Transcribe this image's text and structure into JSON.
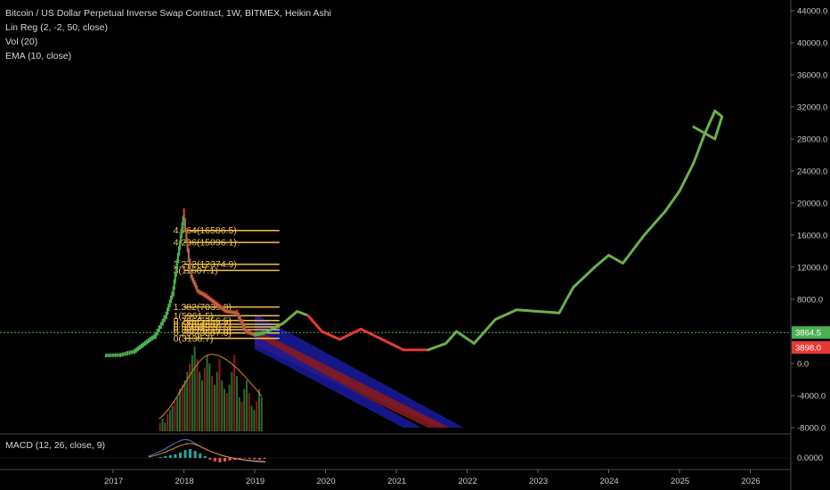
{
  "legend": {
    "symbol": "Bitcoin / US Dollar Perpetual Inverse Swap Contract, 1W, BITMEX, Heikin Ashi",
    "linreg": "Lin Reg (2, -2, 50, close)",
    "vol": "Vol (20)",
    "ema": "EMA (10, close)"
  },
  "macd_legend": "MACD (12, 26, close, 9)",
  "colors": {
    "background": "#000000",
    "up_candle": "#4caf50",
    "down_candle": "#e53935",
    "fib": "#f5c24b",
    "projection_up": "#6ab04c",
    "projection_down": "#e53935",
    "channel_blue": "#1a1a9e",
    "channel_red": "#8b1a1a",
    "price_line": "#4caf50"
  },
  "chart_data": {
    "type": "line",
    "title": "Bitcoin / US Dollar Perpetual Inverse Swap Contract, 1W, BITMEX, Heikin Ashi",
    "x_ticks": [
      "2017",
      "2018",
      "2019",
      "2020",
      "2021",
      "2022",
      "2023",
      "2024",
      "2025",
      "2026"
    ],
    "y_ticks": [
      "44000.0",
      "40000.0",
      "36000.0",
      "32000.0",
      "28000.0",
      "24000.0",
      "20000.0",
      "16000.0",
      "12000.0",
      "8000.0",
      "0.0",
      "-4000.0",
      "-8000.0"
    ],
    "ylim": [
      -8000,
      44000
    ],
    "price_badges": [
      {
        "label": "3864.5",
        "value": 3864.5,
        "color": "#4caf50"
      },
      {
        "label": "3898.0",
        "value": 2000,
        "color": "#e53935"
      }
    ],
    "fib_levels": [
      {
        "label": "4.764(16586.5)",
        "value": 16586.5
      },
      {
        "label": "4.236(15096.1)",
        "value": 15096.1
      },
      {
        "label": "3.272(12374.9)",
        "value": 12374.9
      },
      {
        "label": "3(11607.1)",
        "value": 11607.1
      },
      {
        "label": "1.382(7039.8)",
        "value": 7039.8
      },
      {
        "label": "1(5961.5)",
        "value": 5961.5
      },
      {
        "label": "0.786(5356.5)",
        "value": 5356.5
      },
      {
        "label": "0.618(4882.2)",
        "value": 4882.2
      },
      {
        "label": "0.5(4549.9)",
        "value": 4549.9
      },
      {
        "label": "0.382(4216.8)",
        "value": 4216.8
      },
      {
        "label": "0.236(3807.0)",
        "value": 3807.0
      },
      {
        "label": "0(3138.7)",
        "value": 3138.7
      }
    ],
    "series": [
      {
        "kind": "price",
        "x": [
          2016.9,
          2017.1,
          2017.3,
          2017.45,
          2017.6,
          2017.75,
          2017.85,
          2017.93,
          2018.0,
          2018.1,
          2018.2,
          2018.3,
          2018.45,
          2018.6,
          2018.75,
          2018.88,
          2019.0,
          2019.15
        ],
        "values": [
          1000,
          1050,
          1500,
          2500,
          3500,
          6000,
          9000,
          14000,
          18500,
          11000,
          9000,
          8500,
          7500,
          6500,
          6300,
          4000,
          3600,
          3860
        ]
      },
      {
        "kind": "projection_up",
        "x": [
          2019.15,
          2019.4,
          2019.6,
          2019.75
        ],
        "values": [
          3860,
          5000,
          6500,
          6000
        ]
      },
      {
        "kind": "projection_down",
        "x": [
          2019.75,
          2019.95,
          2020.2,
          2020.5,
          2020.8,
          2021.1,
          2021.45
        ],
        "values": [
          6000,
          4000,
          3000,
          4300,
          3000,
          1700,
          1700
        ]
      },
      {
        "kind": "projection_up",
        "x": [
          2021.45,
          2021.7,
          2021.85,
          2022.1,
          2022.4,
          2022.7,
          2023.0,
          2023.3,
          2023.5,
          2023.8,
          2024.0,
          2024.2,
          2024.5,
          2024.8,
          2025.0,
          2025.2,
          2025.35,
          2025.5,
          2025.6,
          2025.5,
          2025.2
        ],
        "values": [
          1700,
          2500,
          4000,
          2500,
          5500,
          6700,
          6500,
          6300,
          9500,
          12000,
          13500,
          12500,
          16000,
          19000,
          21500,
          25000,
          28500,
          31500,
          30800,
          28000,
          29500
        ]
      }
    ]
  }
}
